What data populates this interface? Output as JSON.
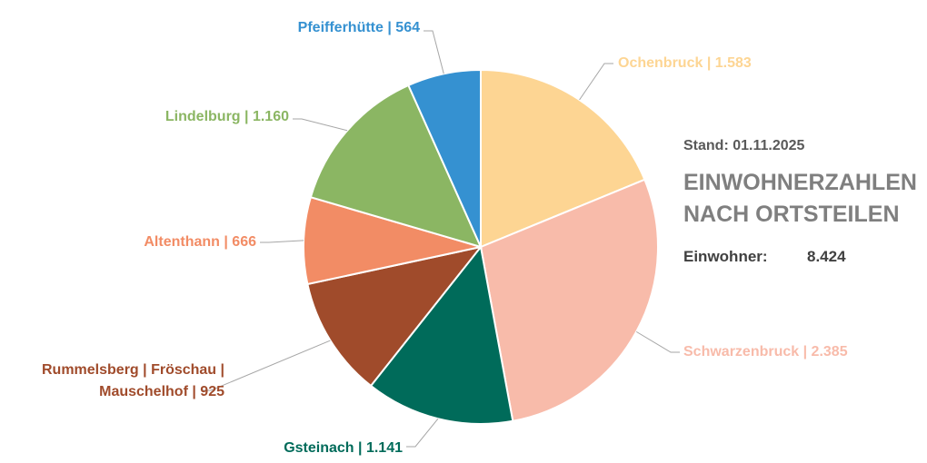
{
  "chart_data": {
    "type": "pie",
    "title": "EINWOHNERZAHLEN NACH ORTSTEILEN",
    "subtitle": "Stand: 01.11.2025",
    "total_label": "Einwohner:",
    "total": 8424,
    "total_value_label": "8.424",
    "label_separator": "|",
    "categories": [
      "Ochenbruck",
      "Schwarzenbruck",
      "Gsteinach",
      "Rummelsberg | Fröschau | Mauschelhof",
      "Altenthann",
      "Lindelburg",
      "Pfeifferhütte"
    ],
    "values": [
      1583,
      2385,
      1141,
      925,
      666,
      1160,
      564
    ],
    "value_labels": [
      "1.583",
      "2.385",
      "1.141",
      "925",
      "666",
      "1.160",
      "564"
    ],
    "colors": [
      "#fdd593",
      "#f8bbaa",
      "#006b5a",
      "#a04b2b",
      "#f28c65",
      "#8bb663",
      "#3591d1"
    ]
  }
}
